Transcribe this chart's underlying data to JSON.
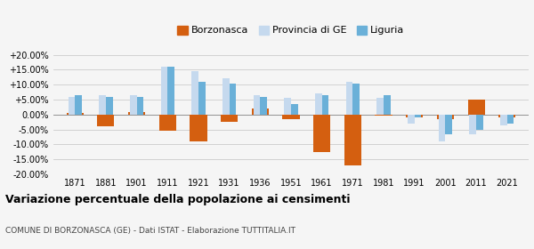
{
  "years": [
    1871,
    1881,
    1901,
    1911,
    1921,
    1931,
    1936,
    1951,
    1961,
    1971,
    1981,
    1991,
    2001,
    2011,
    2021
  ],
  "borzonasca": [
    0.5,
    -4.0,
    0.7,
    -5.5,
    -9.0,
    -2.5,
    2.0,
    -1.5,
    -12.5,
    -17.0,
    -0.5,
    -1.0,
    -1.5,
    5.0,
    -1.0
  ],
  "provincia_ge": [
    6.0,
    6.5,
    6.5,
    16.0,
    14.5,
    12.0,
    6.5,
    5.5,
    7.0,
    11.0,
    5.5,
    -3.0,
    -9.0,
    -6.5,
    -3.5
  ],
  "liguria": [
    6.5,
    6.0,
    6.0,
    16.0,
    11.0,
    10.5,
    6.0,
    3.5,
    6.5,
    10.5,
    6.5,
    -1.0,
    -6.5,
    -5.0,
    -3.0
  ],
  "color_borzonasca": "#d45f10",
  "color_provincia": "#c5d9ee",
  "color_liguria": "#6ab0d8",
  "title": "Variazione percentuale della popolazione ai censimenti",
  "subtitle": "COMUNE DI BORZONASCA (GE) - Dati ISTAT - Elaborazione TUTTITALIA.IT",
  "ylim": [
    -20,
    20
  ],
  "yticks": [
    -20,
    -15,
    -10,
    -5,
    0,
    5,
    10,
    15,
    20
  ],
  "background_color": "#f5f5f5",
  "grid_color": "#cccccc"
}
